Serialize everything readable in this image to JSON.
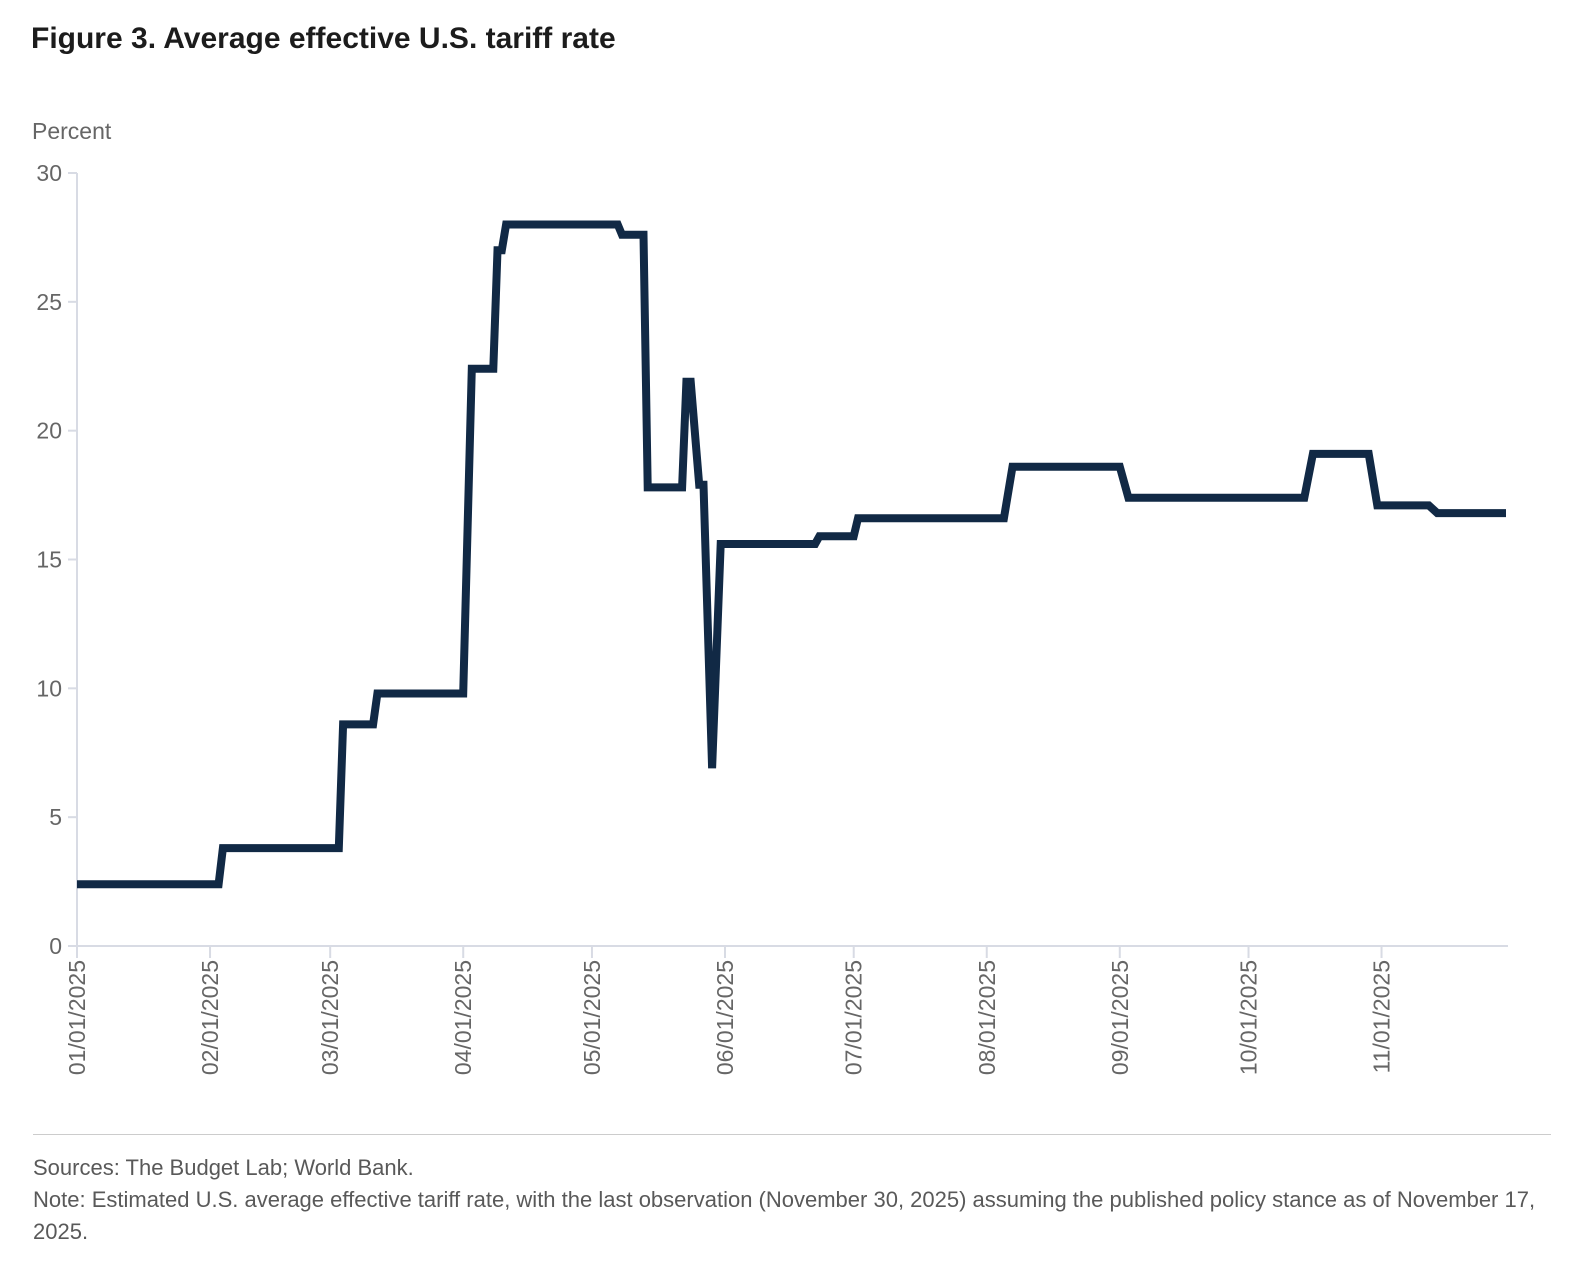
{
  "title": "Figure 3. Average effective U.S. tariff rate",
  "chart_data": {
    "type": "line",
    "subtype": "step-daily",
    "title": "Figure 3. Average effective U.S. tariff rate",
    "xlabel": "",
    "ylabel": "Percent",
    "ylim": [
      0,
      30
    ],
    "yticks": [
      0,
      5,
      10,
      15,
      20,
      25,
      30
    ],
    "xtick_labels": [
      "01/01/2025",
      "02/01/2025",
      "03/01/2025",
      "04/01/2025",
      "05/01/2025",
      "06/01/2025",
      "07/01/2025",
      "08/01/2025",
      "09/01/2025",
      "10/01/2025",
      "11/01/2025"
    ],
    "x_start": "01/01/2025",
    "x_end": "11/30/2025",
    "grid": false,
    "legend_position": "none",
    "series": [
      {
        "name": "Average effective U.S. tariff rate (percent)",
        "color": "#112945",
        "points": [
          [
            "01/01",
            2.4
          ],
          [
            "02/03",
            2.4
          ],
          [
            "02/04",
            3.8
          ],
          [
            "03/03",
            3.8
          ],
          [
            "03/04",
            8.6
          ],
          [
            "03/11",
            8.6
          ],
          [
            "03/12",
            9.8
          ],
          [
            "04/01",
            9.8
          ],
          [
            "04/03",
            22.4
          ],
          [
            "04/08",
            22.4
          ],
          [
            "04/09",
            27
          ],
          [
            "04/10",
            27
          ],
          [
            "04/11",
            28
          ],
          [
            "05/07",
            28
          ],
          [
            "05/08",
            27.6
          ],
          [
            "05/13",
            27.6
          ],
          [
            "05/14",
            17.8
          ],
          [
            "05/22",
            17.8
          ],
          [
            "05/23",
            21.9
          ],
          [
            "05/24",
            21.9
          ],
          [
            "05/26",
            17.9
          ],
          [
            "05/27",
            17.9
          ],
          [
            "05/29",
            6.9
          ],
          [
            "05/31",
            15.6
          ],
          [
            "06/22",
            15.6
          ],
          [
            "06/23",
            15.9
          ],
          [
            "07/01",
            15.9
          ],
          [
            "07/02",
            16.6
          ],
          [
            "08/05",
            16.6
          ],
          [
            "08/07",
            18.6
          ],
          [
            "09/01",
            18.6
          ],
          [
            "09/03",
            17.4
          ],
          [
            "10/14",
            17.4
          ],
          [
            "10/16",
            19.1
          ],
          [
            "10/29",
            19.1
          ],
          [
            "10/31",
            17.1
          ],
          [
            "11/12",
            17.1
          ],
          [
            "11/14",
            16.8
          ],
          [
            "11/30",
            16.8
          ]
        ]
      }
    ]
  },
  "footer": {
    "sources": "Sources: The Budget Lab; World Bank.",
    "note": "Note: Estimated U.S. average effective tariff rate, with the last observation (November 30, 2025) assuming the published policy stance as of November 17, 2025."
  },
  "colors": {
    "line": "#112945",
    "axis": "#d8dbe4",
    "tick_label": "#666666",
    "title_text": "#1c1c1c",
    "footer_text": "#595959",
    "divider": "#cccccc"
  }
}
